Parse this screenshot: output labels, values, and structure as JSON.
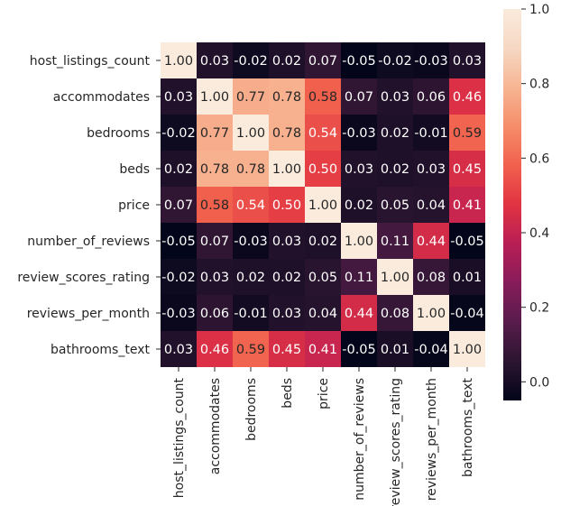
{
  "chart_data": {
    "type": "heatmap",
    "title": "",
    "variables": [
      "host_listings_count",
      "accommodates",
      "bedrooms",
      "beds",
      "price",
      "number_of_reviews",
      "review_scores_rating",
      "reviews_per_month",
      "bathrooms_text"
    ],
    "matrix": [
      [
        1.0,
        0.03,
        -0.02,
        0.02,
        0.07,
        -0.05,
        -0.02,
        -0.03,
        0.03
      ],
      [
        0.03,
        1.0,
        0.77,
        0.78,
        0.58,
        0.07,
        0.03,
        0.06,
        0.46
      ],
      [
        -0.02,
        0.77,
        1.0,
        0.78,
        0.54,
        -0.03,
        0.02,
        -0.01,
        0.59
      ],
      [
        0.02,
        0.78,
        0.78,
        1.0,
        0.5,
        0.03,
        0.02,
        0.03,
        0.45
      ],
      [
        0.07,
        0.58,
        0.54,
        0.5,
        1.0,
        0.02,
        0.05,
        0.04,
        0.41
      ],
      [
        -0.05,
        0.07,
        -0.03,
        0.03,
        0.02,
        1.0,
        0.11,
        0.44,
        -0.05
      ],
      [
        -0.02,
        0.03,
        0.02,
        0.02,
        0.05,
        0.11,
        1.0,
        0.08,
        0.01
      ],
      [
        -0.03,
        0.06,
        -0.01,
        0.03,
        0.04,
        0.44,
        0.08,
        1.0,
        -0.04
      ],
      [
        0.03,
        0.46,
        0.59,
        0.45,
        0.41,
        -0.05,
        0.01,
        -0.04,
        1.0
      ]
    ],
    "value_range": [
      -0.05,
      1.0
    ],
    "colorbar": {
      "ticks": [
        0.0,
        0.2,
        0.4,
        0.6,
        0.8,
        1.0
      ],
      "tick_labels": [
        "0.0",
        "0.2",
        "0.4",
        "0.6",
        "0.8",
        "1.0"
      ]
    },
    "annotation_format": "0.00",
    "colormap": "rocket",
    "colormap_stops": [
      "#03051a",
      "#2b1530",
      "#581c4c",
      "#871c5a",
      "#b81e55",
      "#e13342",
      "#f1604d",
      "#f58d69",
      "#f7b593",
      "#f6d8c3",
      "#faebdd"
    ]
  }
}
